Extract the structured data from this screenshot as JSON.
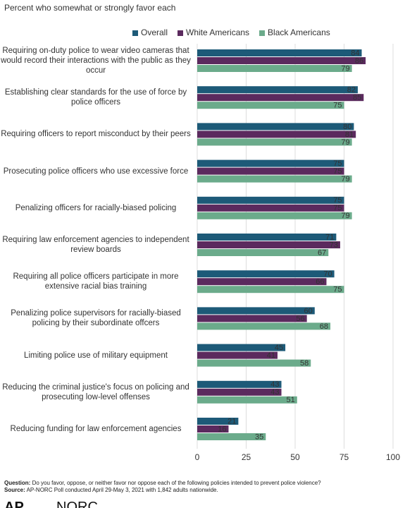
{
  "chart_data": {
    "type": "bar",
    "orientation": "horizontal",
    "subtitle": "Percent who somewhat or strongly favor each",
    "categories": [
      "Requiring on-duty police to wear video cameras that would record their interactions with the public as they occur",
      "Establishing clear standards for the use of force by police officers",
      "Requiring officers to report misconduct by their peers",
      "Prosecuting police officers who use excessive force",
      "Penalizing officers for racially-biased policing",
      "Requiring law enforcement agencies to independent review boards",
      "Requiring all police officers participate in more extensive racial bias training",
      "Penalizing police supervisors for racially-biased policing by their subordinate offcers",
      "Limiting police use of military equipment",
      "Reducing the criminal justice's focus on policing and prosecuting low-level offenses",
      "Reducing funding for law enforcement agencies"
    ],
    "series": [
      {
        "name": "Overall",
        "color": "#1d5a78",
        "values": [
          84,
          82,
          80,
          75,
          75,
          71,
          70,
          60,
          45,
          43,
          21
        ]
      },
      {
        "name": "White Americans",
        "color": "#5b2a5e",
        "values": [
          86,
          85,
          81,
          75,
          75,
          73,
          66,
          56,
          41,
          43,
          16
        ]
      },
      {
        "name": "Black Americans",
        "color": "#6bab8b",
        "values": [
          79,
          75,
          79,
          79,
          79,
          67,
          75,
          68,
          58,
          51,
          35
        ]
      }
    ],
    "xlim": [
      0,
      100
    ],
    "xticks": [
      0,
      25,
      50,
      75,
      100
    ],
    "grid": true,
    "legend": "top"
  },
  "footer": {
    "question_label": "Question:",
    "question": "Do you favor, oppose, or neither favor nor oppose each of the following policies intended to prevent police violence?",
    "source_label": "Source:",
    "source": "AP-NORC Poll conducted April 29-May 3, 2021 with 1,842 adults nationwide.",
    "logos": [
      "AP",
      "NORC"
    ]
  }
}
